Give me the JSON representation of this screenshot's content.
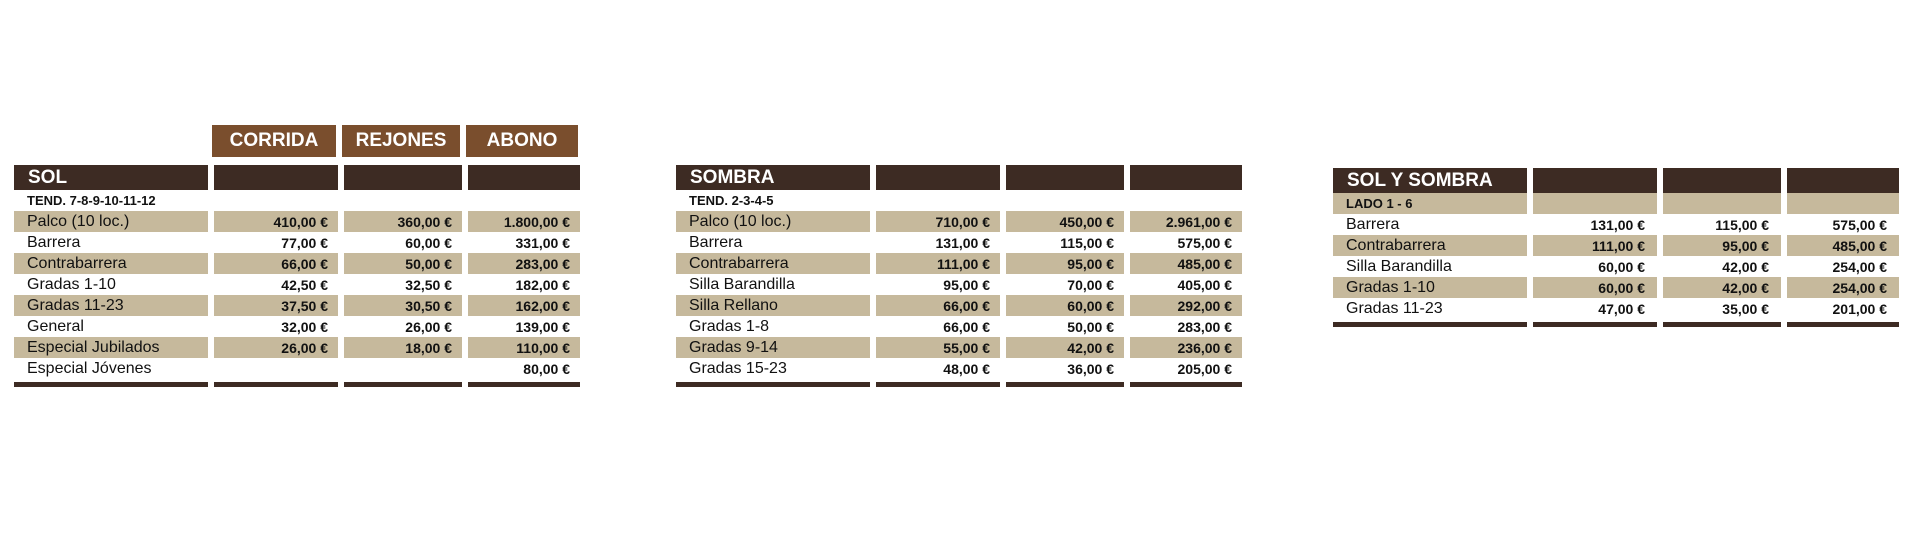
{
  "column_headers": [
    "CORRIDA",
    "REJONES",
    "ABONO"
  ],
  "tables": [
    {
      "name": "SOL",
      "subheader": "TEND. 7-8-9-10-11-12",
      "rows": [
        {
          "label": "Palco (10 loc.)",
          "prices": [
            "410,00 €",
            "360,00 €",
            "1.800,00 €"
          ]
        },
        {
          "label": "Barrera",
          "prices": [
            "77,00 €",
            "60,00 €",
            "331,00 €"
          ]
        },
        {
          "label": "Contrabarrera",
          "prices": [
            "66,00 €",
            "50,00 €",
            "283,00 €"
          ]
        },
        {
          "label": "Gradas 1-10",
          "prices": [
            "42,50 €",
            "32,50 €",
            "182,00 €"
          ]
        },
        {
          "label": "Gradas 11-23",
          "prices": [
            "37,50 €",
            "30,50 €",
            "162,00 €"
          ]
        },
        {
          "label": "General",
          "prices": [
            "32,00 €",
            "26,00 €",
            "139,00 €"
          ]
        },
        {
          "label": "Especial Jubilados",
          "prices": [
            "26,00 €",
            "18,00 €",
            "110,00 €"
          ]
        },
        {
          "label": "Especial Jóvenes",
          "prices": [
            "",
            "",
            "80,00 €"
          ]
        }
      ]
    },
    {
      "name": "SOMBRA",
      "subheader": "TEND. 2-3-4-5",
      "rows": [
        {
          "label": "Palco (10 loc.)",
          "prices": [
            "710,00 €",
            "450,00 €",
            "2.961,00 €"
          ]
        },
        {
          "label": "Barrera",
          "prices": [
            "131,00 €",
            "115,00 €",
            "575,00 €"
          ]
        },
        {
          "label": "Contrabarrera",
          "prices": [
            "111,00 €",
            "95,00 €",
            "485,00 €"
          ]
        },
        {
          "label": "Silla Barandilla",
          "prices": [
            "95,00 €",
            "70,00 €",
            "405,00 €"
          ]
        },
        {
          "label": "Silla Rellano",
          "prices": [
            "66,00 €",
            "60,00 €",
            "292,00 €"
          ]
        },
        {
          "label": "Gradas 1-8",
          "prices": [
            "66,00 €",
            "50,00 €",
            "283,00 €"
          ]
        },
        {
          "label": "Gradas 9-14",
          "prices": [
            "55,00 €",
            "42,00 €",
            "236,00 €"
          ]
        },
        {
          "label": "Gradas 15-23",
          "prices": [
            "48,00 €",
            "36,00 €",
            "205,00 €"
          ]
        }
      ]
    },
    {
      "name": "SOL Y SOMBRA",
      "subheader": "LADO 1 - 6",
      "rows": [
        {
          "label": "Barrera",
          "prices": [
            "131,00 €",
            "115,00 €",
            "575,00 €"
          ]
        },
        {
          "label": "Contrabarrera",
          "prices": [
            "111,00 €",
            "95,00 €",
            "485,00 €"
          ]
        },
        {
          "label": "Silla Barandilla",
          "prices": [
            "60,00 €",
            "42,00 €",
            "254,00 €"
          ]
        },
        {
          "label": "Gradas 1-10",
          "prices": [
            "60,00 €",
            "42,00 €",
            "254,00 €"
          ]
        },
        {
          "label": "Gradas 11-23",
          "prices": [
            "47,00 €",
            "35,00 €",
            "201,00 €"
          ]
        }
      ]
    }
  ]
}
